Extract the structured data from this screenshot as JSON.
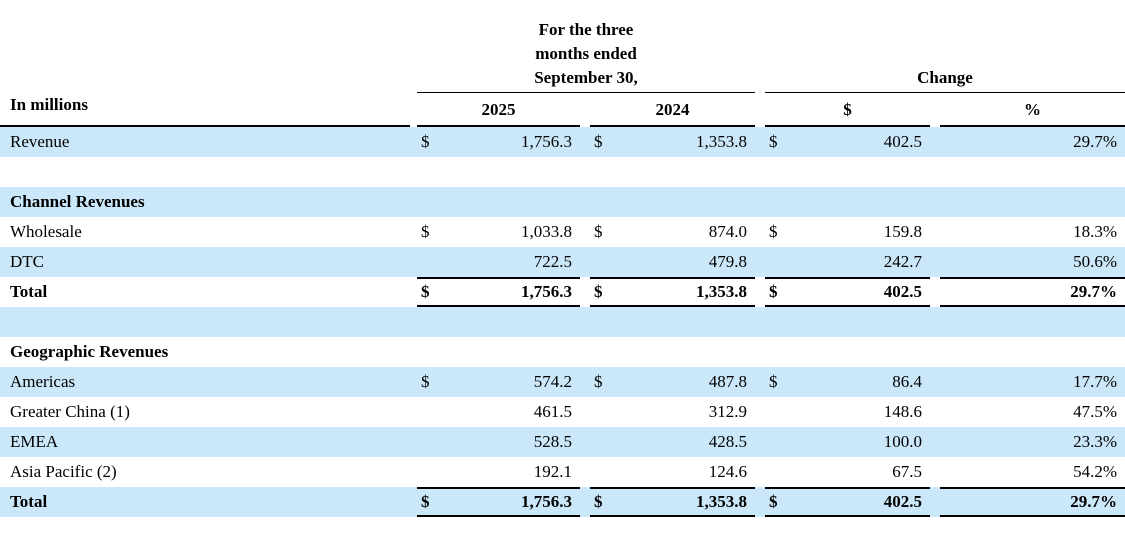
{
  "colors": {
    "stripe_blue": "#cbe8fa",
    "text": "#000000",
    "rule": "#000000"
  },
  "table": {
    "period_header": "For the three months ended September 30,",
    "change_header": "Change",
    "unit_label": "In millions",
    "columns": [
      "2025",
      "2024",
      "$",
      "%"
    ],
    "rows": [
      {
        "type": "data",
        "label": "Revenue",
        "cells": [
          {
            "d": "$",
            "v": "1,756.3"
          },
          {
            "d": "$",
            "v": "1,353.8"
          },
          {
            "d": "$",
            "v": "402.5"
          },
          {
            "d": "",
            "v": "29.7%"
          }
        ]
      },
      {
        "type": "spacer"
      },
      {
        "type": "section",
        "label": "Channel Revenues"
      },
      {
        "type": "data",
        "label": "Wholesale",
        "cells": [
          {
            "d": "$",
            "v": "1,033.8"
          },
          {
            "d": "$",
            "v": "874.0"
          },
          {
            "d": "$",
            "v": "159.8"
          },
          {
            "d": "",
            "v": "18.3%"
          }
        ]
      },
      {
        "type": "data",
        "label": "DTC",
        "cells": [
          {
            "d": "",
            "v": "722.5"
          },
          {
            "d": "",
            "v": "479.8"
          },
          {
            "d": "",
            "v": "242.7"
          },
          {
            "d": "",
            "v": "50.6%"
          }
        ]
      },
      {
        "type": "total",
        "label": "Total",
        "cells": [
          {
            "d": "$",
            "v": "1,756.3"
          },
          {
            "d": "$",
            "v": "1,353.8"
          },
          {
            "d": "$",
            "v": "402.5"
          },
          {
            "d": "",
            "v": "29.7%"
          }
        ]
      },
      {
        "type": "spacer"
      },
      {
        "type": "section",
        "label": "Geographic Revenues"
      },
      {
        "type": "data",
        "label": "Americas",
        "cells": [
          {
            "d": "$",
            "v": "574.2"
          },
          {
            "d": "$",
            "v": "487.8"
          },
          {
            "d": "$",
            "v": "86.4"
          },
          {
            "d": "",
            "v": "17.7%"
          }
        ]
      },
      {
        "type": "data",
        "label": "Greater China (1)",
        "cells": [
          {
            "d": "",
            "v": "461.5"
          },
          {
            "d": "",
            "v": "312.9"
          },
          {
            "d": "",
            "v": "148.6"
          },
          {
            "d": "",
            "v": "47.5%"
          }
        ]
      },
      {
        "type": "data",
        "label": "EMEA",
        "cells": [
          {
            "d": "",
            "v": "528.5"
          },
          {
            "d": "",
            "v": "428.5"
          },
          {
            "d": "",
            "v": "100.0"
          },
          {
            "d": "",
            "v": "23.3%"
          }
        ]
      },
      {
        "type": "data",
        "label": "Asia Pacific (2)",
        "cells": [
          {
            "d": "",
            "v": "192.1"
          },
          {
            "d": "",
            "v": "124.6"
          },
          {
            "d": "",
            "v": "67.5"
          },
          {
            "d": "",
            "v": "54.2%"
          }
        ]
      },
      {
        "type": "total",
        "label": "Total",
        "cells": [
          {
            "d": "$",
            "v": "1,756.3"
          },
          {
            "d": "$",
            "v": "1,353.8"
          },
          {
            "d": "$",
            "v": "402.5"
          },
          {
            "d": "",
            "v": "29.7%"
          }
        ]
      }
    ]
  }
}
